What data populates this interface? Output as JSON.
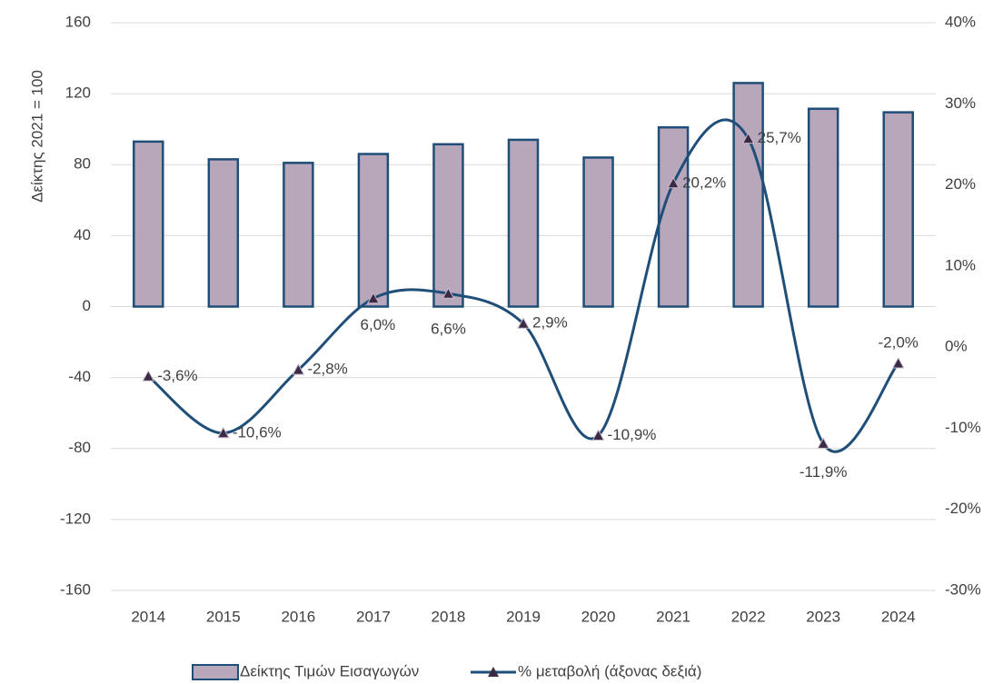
{
  "chart_data": {
    "type": "bar-line",
    "y_axis_label": "Δείκτης 2021 = 100",
    "categories": [
      "2014",
      "2015",
      "2016",
      "2017",
      "2018",
      "2019",
      "2020",
      "2021",
      "2022",
      "2023",
      "2024"
    ],
    "series": [
      {
        "name": "Δείκτης Τιμών Εισαγωγών",
        "type": "bar",
        "color": "#b8a6ba",
        "edge_color": "#1f4e79",
        "values": [
          93,
          83,
          81,
          86,
          91.5,
          94,
          84,
          101,
          126,
          111.5,
          109.5
        ]
      },
      {
        "name": "% μεταβολή (άξονας δεξιά)",
        "type": "line",
        "axis": "y2",
        "color": "#1f4e79",
        "marker_color": "#3b2a44",
        "values": [
          -3.6,
          -10.6,
          -2.8,
          6.0,
          6.6,
          2.9,
          -10.9,
          20.2,
          25.7,
          -11.9,
          -2.0
        ],
        "value_labels": [
          "-3,6%",
          "-10,6%",
          "-2,8%",
          "6,0%",
          "6,6%",
          "2,9%",
          "-10,9%",
          "20,2%",
          "25,7%",
          "-11,9%",
          "-2,0%"
        ]
      }
    ],
    "ylim": [
      -160,
      160
    ],
    "yticks": [
      -160,
      -120,
      -80,
      -40,
      0,
      40,
      80,
      120,
      160
    ],
    "y2lim": [
      -30,
      40
    ],
    "y2ticks": [
      {
        "value": -30,
        "label": "-30%"
      },
      {
        "value": -20,
        "label": "-20%"
      },
      {
        "value": -10,
        "label": "-10%"
      },
      {
        "value": 0,
        "label": "0%"
      },
      {
        "value": 10,
        "label": "10%"
      },
      {
        "value": 20,
        "label": "20%"
      },
      {
        "value": 30,
        "label": "30%"
      },
      {
        "value": 40,
        "label": "40%"
      }
    ],
    "grid": true,
    "legend": "bottom"
  }
}
